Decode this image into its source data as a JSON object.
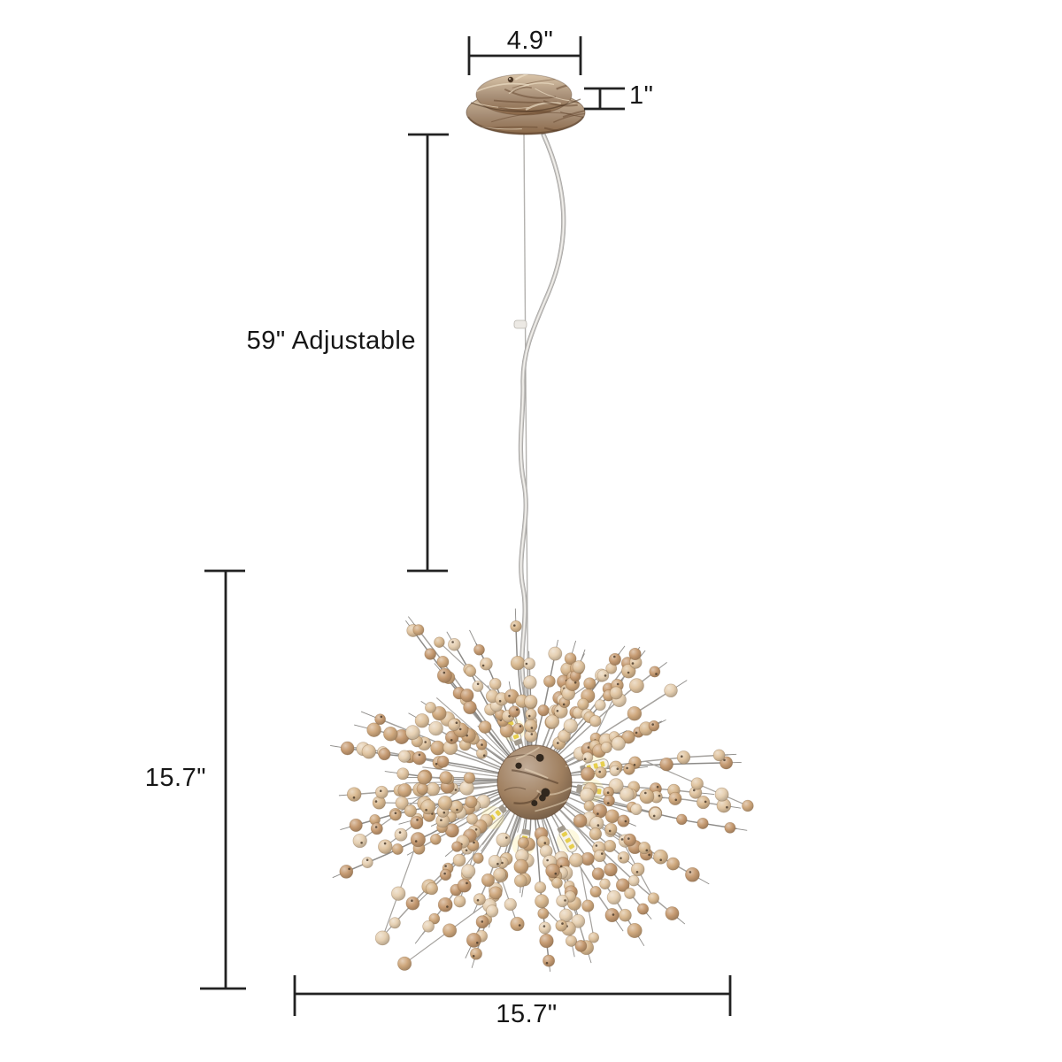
{
  "page": {
    "background": "#ffffff",
    "description": "Dimension diagram of a firework-style wood-beaded pendant chandelier"
  },
  "labels": {
    "canopy_width": "4.9\"",
    "canopy_height": "1\"",
    "cord_length": "59\" Adjustable",
    "fixture_height": "15.7\"",
    "fixture_width": "15.7\""
  },
  "colors": {
    "dimension_line": "#222222",
    "label_text": "#161616",
    "bead_palette": [
      "#e6d0b2",
      "#d9b990",
      "#cfa87d",
      "#e0c4a0",
      "#c69b72"
    ],
    "wire_dark": "#8d8b88",
    "wire_light": "#a5a29e",
    "hub_wood": "#a08060",
    "canopy_wood_light": "#d9c4a8",
    "canopy_wood_dark": "#8a6848",
    "cord_outer": "#c9c7c4",
    "cord_inner": "#f2f0ec",
    "cable": "#b3b1ae",
    "bulb_body": "#f6f2e8",
    "bulb_chip": "#e7cf4e",
    "bulb_cap": "#a29a8e"
  }
}
